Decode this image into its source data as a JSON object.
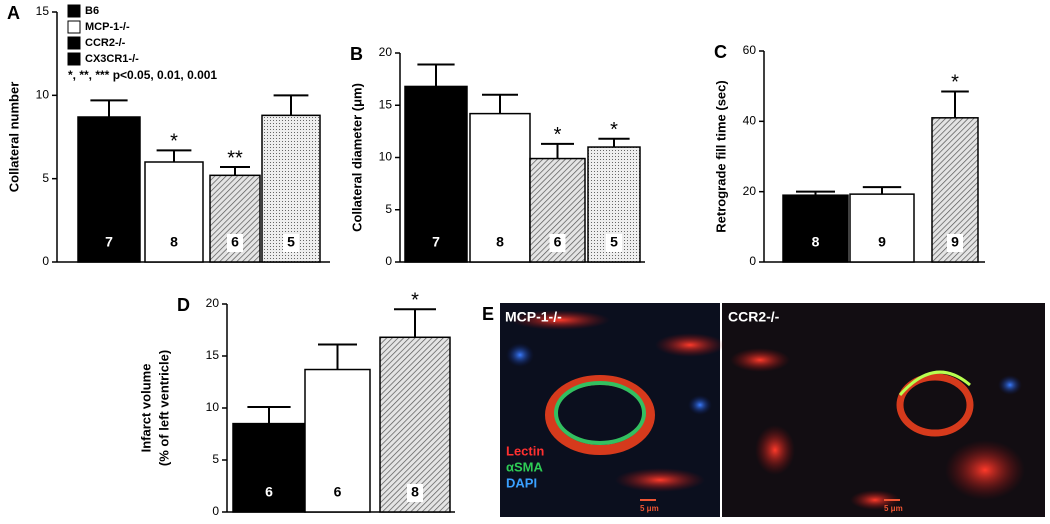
{
  "chart_data": [
    {
      "type": "bar",
      "panel": "A",
      "y_label": "Collateral number",
      "ylim": [
        0,
        15
      ],
      "yticks": [
        0,
        5,
        10,
        15
      ],
      "values": [
        8.7,
        6.0,
        5.2,
        8.8
      ],
      "errors": [
        1.0,
        0.7,
        0.5,
        1.2
      ],
      "n": [
        "7",
        "8",
        "6",
        "5"
      ],
      "significance": [
        null,
        "*",
        "**",
        null
      ],
      "fills": [
        "solid",
        "white",
        "hatch",
        "dots"
      ],
      "legend": [
        {
          "name": "B6",
          "color": "#000000"
        },
        {
          "name": "MCP-1-/-",
          "color": "#ffffff"
        },
        {
          "name": "CCR2-/-",
          "color": "#000000"
        },
        {
          "name": "CX3CR1-/-",
          "color": "#000000"
        }
      ],
      "note": "*,  **,  ***  p<0.05, 0.01, 0.001"
    },
    {
      "type": "bar",
      "panel": "B",
      "y_label": "Collateral diameter (μm)",
      "ylim": [
        0,
        20
      ],
      "yticks": [
        0,
        5,
        10,
        15,
        20
      ],
      "values": [
        16.8,
        14.2,
        9.9,
        11.0
      ],
      "errors": [
        2.1,
        1.8,
        1.4,
        0.8
      ],
      "n": [
        "7",
        "8",
        "6",
        "5"
      ],
      "significance": [
        null,
        null,
        "*",
        "*"
      ],
      "fills": [
        "solid",
        "white",
        "hatch",
        "dots"
      ]
    },
    {
      "type": "bar",
      "panel": "C",
      "y_label": "Retrograde fill time (sec)",
      "ylim": [
        0,
        60
      ],
      "yticks": [
        0,
        20,
        40,
        60
      ],
      "values": [
        19,
        19.3,
        41
      ],
      "errors": [
        1,
        2,
        7.5
      ],
      "n": [
        "8",
        "9",
        "9"
      ],
      "significance": [
        null,
        null,
        "*"
      ],
      "fills": [
        "solid",
        "white",
        "hatch"
      ]
    },
    {
      "type": "bar",
      "panel": "D",
      "y_label": [
        "Infarct volume",
        "(% of left ventricle)"
      ],
      "ylim": [
        0,
        20
      ],
      "yticks": [
        0,
        5,
        10,
        15,
        20
      ],
      "values": [
        8.5,
        13.7,
        16.8
      ],
      "errors": [
        1.6,
        2.4,
        2.7
      ],
      "n": [
        "6",
        "6",
        "8"
      ],
      "significance": [
        null,
        null,
        "*"
      ],
      "fills": [
        "solid",
        "white",
        "hatch"
      ]
    }
  ],
  "image_panel": {
    "panel": "E",
    "left_label": "MCP-1-/-",
    "right_label": "CCR2-/-",
    "stains": [
      "Lectin",
      "αSMA",
      "DAPI"
    ],
    "scale_bar": "5 μm"
  }
}
